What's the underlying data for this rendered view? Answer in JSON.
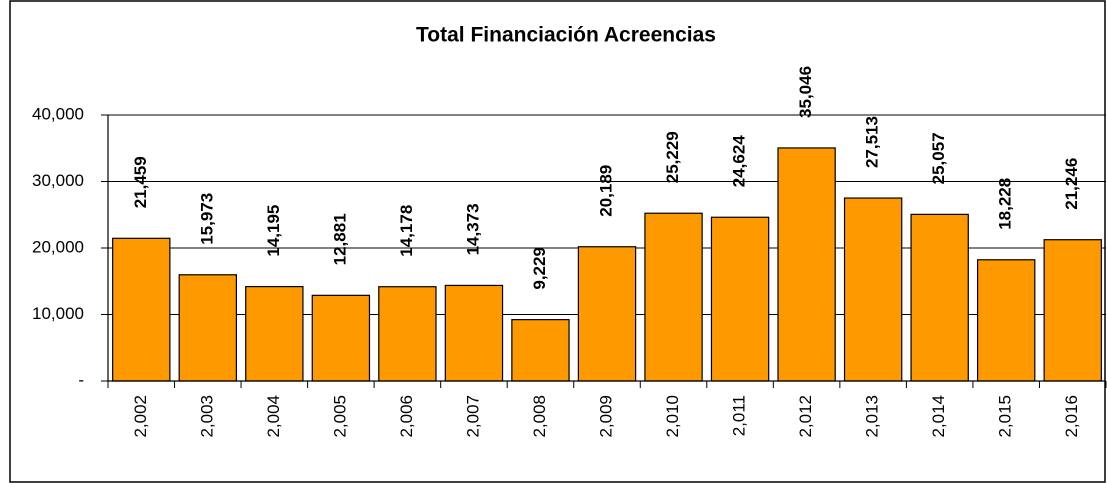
{
  "chart_data": {
    "type": "bar",
    "title": "Total Financiación Acreencias",
    "categories": [
      "2,002",
      "2,003",
      "2,004",
      "2,005",
      "2,006",
      "2,007",
      "2,008",
      "2,009",
      "2,010",
      "2,011",
      "2,012",
      "2,013",
      "2,014",
      "2,015",
      "2,016"
    ],
    "values": [
      21459,
      15973,
      14195,
      12881,
      14178,
      14373,
      9229,
      20189,
      25229,
      24624,
      35046,
      27513,
      25057,
      18228,
      21246
    ],
    "value_labels": [
      "21,459",
      "15,973",
      "14,195",
      "12,881",
      "14,178",
      "14,373",
      "9,229",
      "20,189",
      "25,229",
      "24,624",
      "35,046",
      "27,513",
      "25,057",
      "18,228",
      "21,246"
    ],
    "color": "#ff9900",
    "ylim": [
      0,
      40000
    ],
    "yticks": [
      {
        "value": 0,
        "label": "-"
      },
      {
        "value": 10000,
        "label": "10,000"
      },
      {
        "value": 20000,
        "label": "20,000"
      },
      {
        "value": 30000,
        "label": "30,000"
      },
      {
        "value": 40000,
        "label": "40,000"
      }
    ],
    "grid": true
  }
}
